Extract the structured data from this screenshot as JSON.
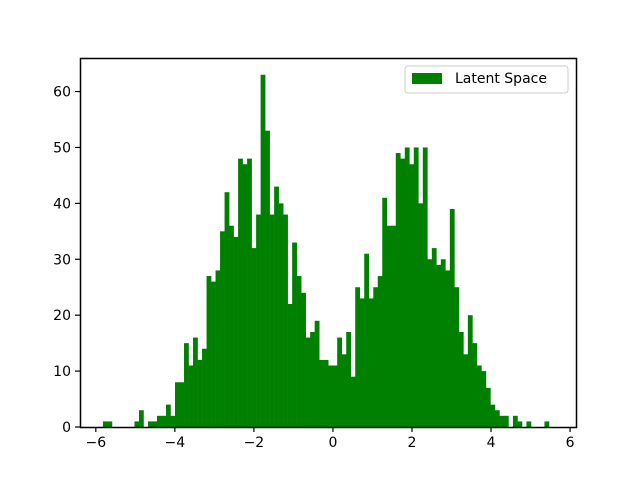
{
  "chart_data": {
    "type": "bar",
    "subtype": "histogram",
    "title": "",
    "xlabel": "",
    "ylabel": "",
    "xlim": [
      -6.4,
      6.15
    ],
    "ylim": [
      0,
      66
    ],
    "xticks": [
      -6,
      -4,
      -2,
      0,
      2,
      4,
      6
    ],
    "xtick_labels": [
      "−6",
      "−4",
      "−2",
      "0",
      "2",
      "4",
      "6"
    ],
    "yticks": [
      0,
      10,
      20,
      30,
      40,
      50,
      60
    ],
    "ytick_labels": [
      "0",
      "10",
      "20",
      "30",
      "40",
      "50",
      "60"
    ],
    "grid": false,
    "legend_position": "top-right",
    "bin_start": -5.82,
    "bin_width": 0.114,
    "series": [
      {
        "name": "Latent Space",
        "color": "#008000",
        "counts": [
          1,
          1,
          0,
          0,
          0,
          0,
          0,
          1,
          3,
          0,
          1,
          1,
          2,
          2,
          4,
          2,
          8,
          8,
          15,
          11,
          16,
          12,
          14,
          27,
          26,
          28,
          35,
          42,
          36,
          34,
          48,
          47,
          48,
          32,
          38,
          63,
          53,
          38,
          43,
          40,
          38,
          22,
          33,
          27,
          24,
          16,
          17,
          19,
          12,
          12,
          11,
          11,
          16,
          13,
          17,
          9,
          25,
          23,
          31,
          23,
          25,
          27,
          41,
          36,
          36,
          49,
          48,
          50,
          47,
          50,
          40,
          50,
          30,
          32,
          29,
          30,
          28,
          39,
          25,
          17,
          13,
          20,
          15,
          11,
          10,
          7,
          4,
          3,
          2,
          2,
          0,
          2,
          1,
          0,
          1,
          0,
          0,
          0,
          1
        ]
      }
    ]
  }
}
